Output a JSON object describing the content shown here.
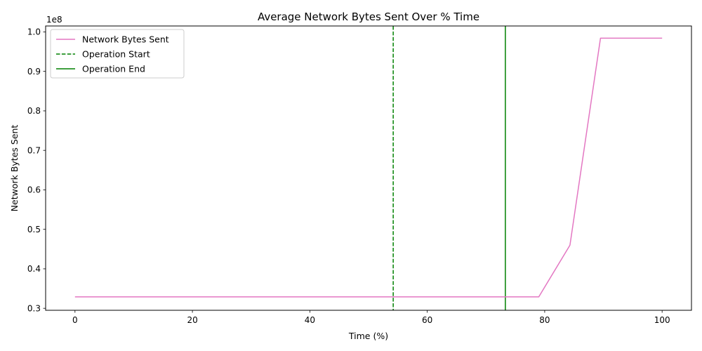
{
  "chart_data": {
    "type": "line",
    "title": "Average Network Bytes Sent Over % Time",
    "xlabel": "Time (%)",
    "ylabel": "Network Bytes Sent",
    "y_offset_label": "1e8",
    "xlim": [
      -5,
      105
    ],
    "ylim": [
      0.295,
      1.015
    ],
    "xticks": [
      0,
      20,
      40,
      60,
      80,
      100
    ],
    "yticks": [
      0.3,
      0.4,
      0.5,
      0.6,
      0.7,
      0.8,
      0.9,
      1.0
    ],
    "xtick_labels": [
      "0",
      "20",
      "40",
      "60",
      "80",
      "100"
    ],
    "ytick_labels": [
      "0.3",
      "0.4",
      "0.5",
      "0.6",
      "0.7",
      "0.8",
      "0.9",
      "1.0"
    ],
    "grid": false,
    "legend_position": "upper-left",
    "series": [
      {
        "name": "Network Bytes Sent",
        "color": "#e377c2",
        "style": "solid",
        "x": [
          0,
          79,
          84.3,
          89.5,
          100
        ],
        "y": [
          0.329,
          0.329,
          0.46,
          0.984,
          0.984
        ]
      }
    ],
    "vlines": [
      {
        "name": "Operation Start",
        "x": 54.2,
        "color": "#008000",
        "style": "dashed"
      },
      {
        "name": "Operation End",
        "x": 73.3,
        "color": "#008000",
        "style": "solid"
      }
    ]
  }
}
